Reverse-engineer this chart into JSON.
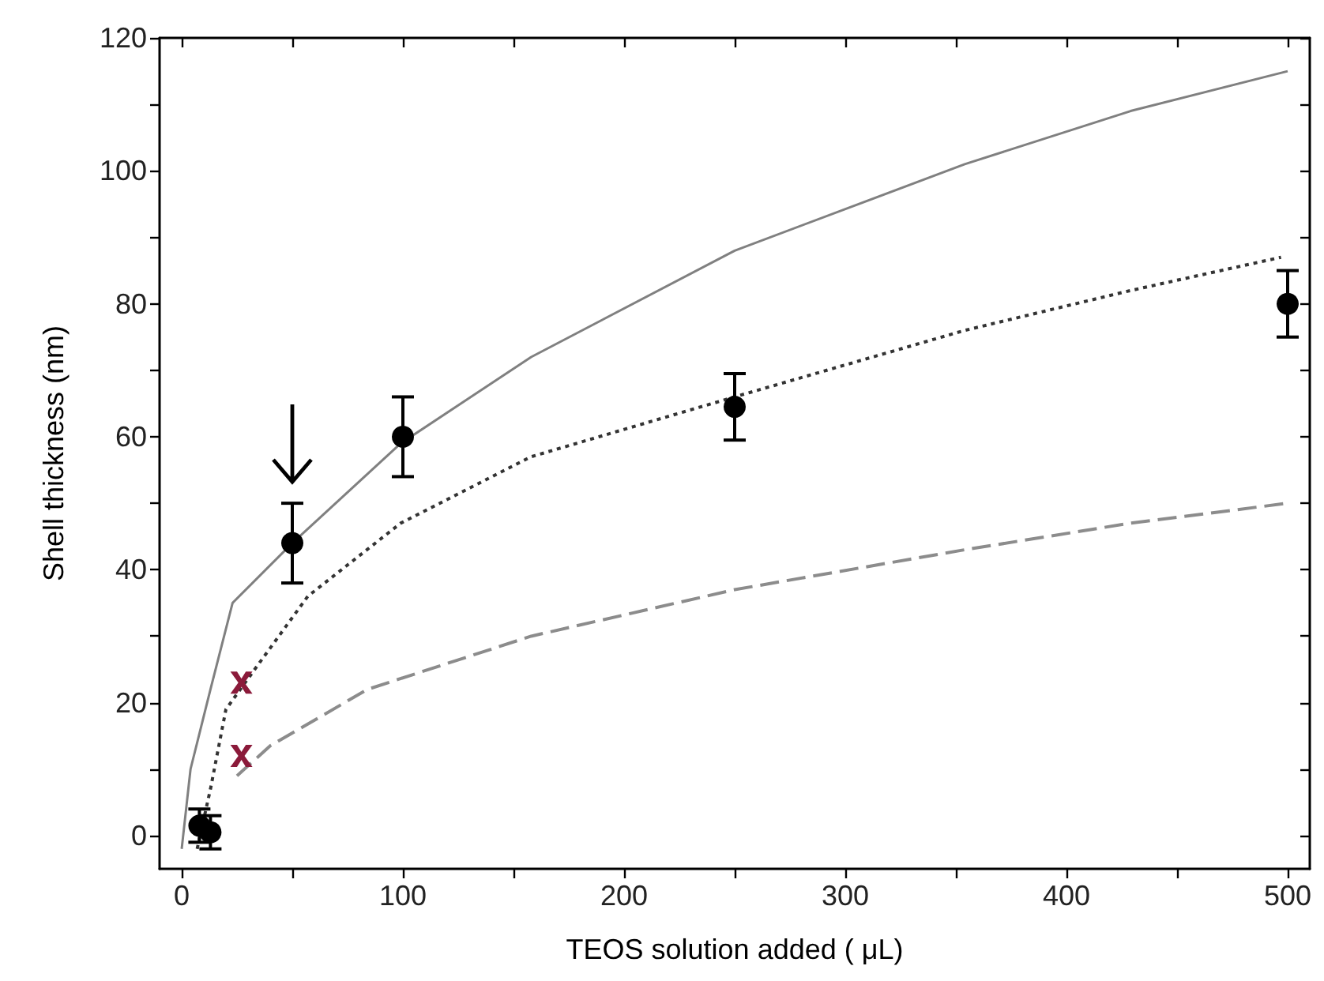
{
  "chart_data": {
    "type": "line",
    "xlabel": "TEOS solution added ( μL)",
    "ylabel": "Shell thickness (nm)",
    "xlim": [
      -10,
      510
    ],
    "ylim": [
      -5,
      120
    ],
    "xticks": [
      0,
      {
        "value": 50,
        "label": null
      },
      100,
      {
        "value": 150,
        "label": null
      },
      200,
      {
        "value": 250,
        "label": null
      },
      300,
      {
        "value": 350,
        "label": null
      },
      400,
      {
        "value": 450,
        "label": null
      },
      500
    ],
    "yticks": [
      0,
      {
        "value": 10,
        "label": null
      },
      20,
      {
        "value": 30,
        "label": null
      },
      40,
      {
        "value": 50,
        "label": null
      },
      60,
      {
        "value": 70,
        "label": null
      },
      80,
      {
        "value": 90,
        "label": null
      },
      100,
      {
        "value": 110,
        "label": null
      },
      120
    ],
    "series": [
      {
        "color": "#808080",
        "line_style": "solid",
        "marker": "none",
        "x": [
          0,
          4,
          13,
          23,
          50,
          99,
          158,
          250,
          354,
          429,
          500
        ],
        "values": [
          -2,
          10,
          22,
          35,
          44,
          59,
          72,
          88,
          101,
          109,
          115
        ]
      },
      {
        "color": "#333333",
        "line_style": "dotted",
        "marker": "none",
        "x": [
          7,
          13,
          20,
          33,
          57,
          99,
          158,
          250,
          354,
          429,
          497
        ],
        "values": [
          -2,
          7,
          19,
          25,
          36,
          47,
          57,
          66,
          76,
          82,
          87
        ]
      },
      {
        "color": "#8c8c8c",
        "line_style": "dashed",
        "marker": "none",
        "x": [
          25,
          40,
          84,
          158,
          250,
          354,
          429,
          500
        ],
        "values": [
          9,
          13.5,
          22,
          30,
          37,
          43,
          47,
          50
        ]
      },
      {
        "type": "scatter",
        "color": "#000000",
        "marker": "circle",
        "x": [
          8,
          13,
          50,
          100,
          250,
          500
        ],
        "values": [
          1.5,
          0.5,
          44,
          60,
          64.5,
          80
        ],
        "errors": [
          2.5,
          2.5,
          6,
          6,
          5,
          5
        ]
      },
      {
        "type": "scatter",
        "color": "#8b1a3a",
        "marker": "cross",
        "x": [
          27,
          27
        ],
        "values": [
          23,
          12
        ]
      }
    ]
  }
}
